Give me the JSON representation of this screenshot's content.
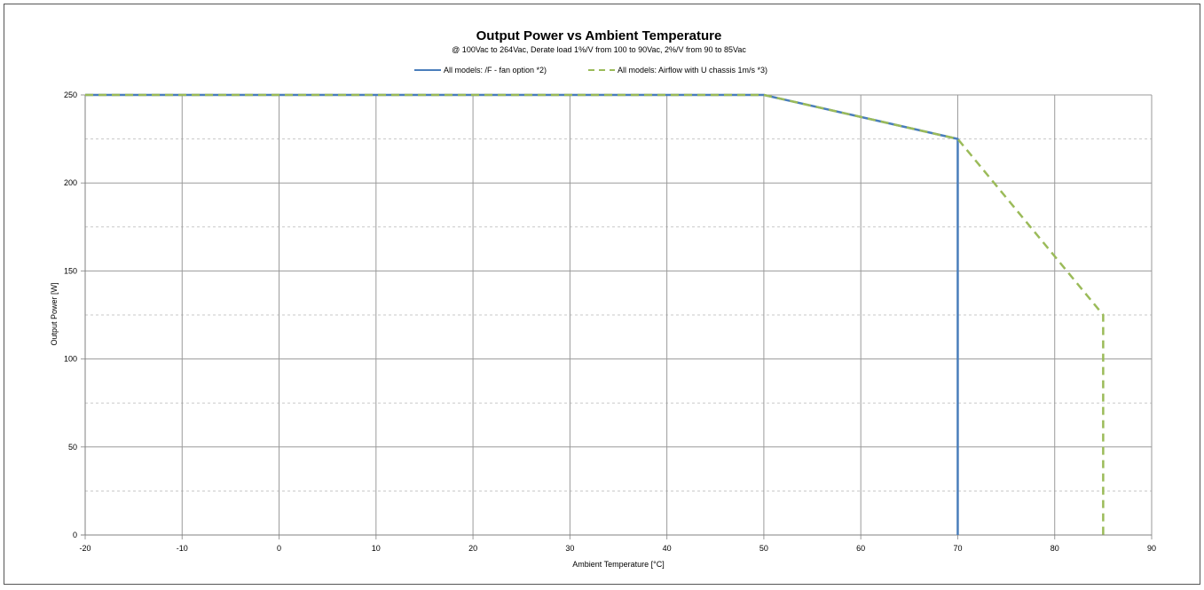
{
  "chart_data": {
    "type": "line",
    "title": "Output Power vs Ambient Temperature",
    "subtitle": "@ 100Vac to 264Vac, Derate load 1%/V from 100 to 90Vac, 2%/V from 90 to 85Vac",
    "xlabel": "Ambient Temperature [°C]",
    "ylabel": "Output Power [W]",
    "xlim": [
      -20,
      90
    ],
    "ylim": [
      0,
      250
    ],
    "x_ticks": [
      -20,
      -10,
      0,
      10,
      20,
      30,
      40,
      50,
      60,
      70,
      80,
      90
    ],
    "y_ticks": [
      0,
      50,
      100,
      150,
      200,
      250
    ],
    "y_minor_grid": [
      25,
      75,
      125,
      175,
      225
    ],
    "grid": true,
    "legend_position": "top-center",
    "series": [
      {
        "name": "All models: /F - fan option *2)",
        "style": "solid",
        "color": "#4a7ebb",
        "x": [
          -20,
          50,
          70,
          70
        ],
        "y": [
          250,
          250,
          225,
          0
        ]
      },
      {
        "name": "All models: Airflow with U chassis 1m/s *3)",
        "style": "dashed",
        "color": "#9bbb59",
        "x": [
          -20,
          50,
          70,
          85,
          85
        ],
        "y": [
          250,
          250,
          225,
          125,
          0
        ]
      }
    ]
  }
}
